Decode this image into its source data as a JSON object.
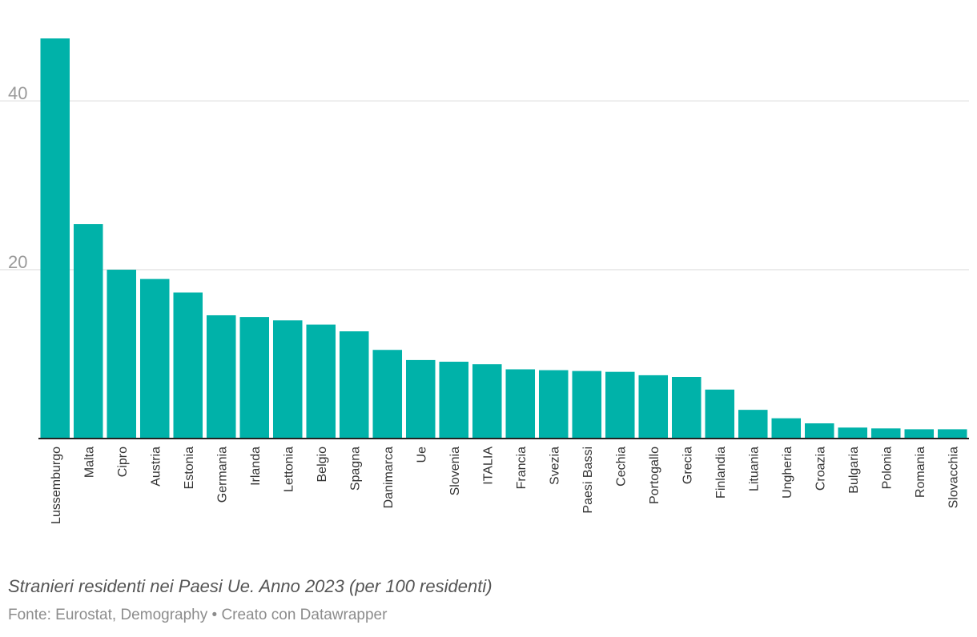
{
  "chart_data": {
    "type": "bar",
    "categories": [
      "Lussemburgo",
      "Malta",
      "Cipro",
      "Austria",
      "Estonia",
      "Germania",
      "Irlanda",
      "Lettonia",
      "Belgio",
      "Spagna",
      "Danimarca",
      "Ue",
      "Slovenia",
      "ITALIA",
      "Francia",
      "Svezia",
      "Paesi Bassi",
      "Cechia",
      "Portogallo",
      "Grecia",
      "Finlandia",
      "Lituania",
      "Ungheria",
      "Croazia",
      "Bulgaria",
      "Polonia",
      "Romania",
      "Slovacchia"
    ],
    "values": [
      47.4,
      25.4,
      20.0,
      18.9,
      17.3,
      14.6,
      14.4,
      14.0,
      13.5,
      12.7,
      10.5,
      9.3,
      9.1,
      8.8,
      8.2,
      8.1,
      8.0,
      7.9,
      7.5,
      7.3,
      5.8,
      3.4,
      2.4,
      1.8,
      1.3,
      1.2,
      1.1,
      1.1
    ],
    "yticks": [
      20,
      40
    ],
    "ylim": [
      0,
      47.4
    ],
    "color": "#00b2a9",
    "grid": true
  },
  "caption": "Stranieri residenti nei Paesi Ue. Anno 2023 (per 100 residenti)",
  "source": "Fonte: Eurostat, Demography • Creato con Datawrapper"
}
